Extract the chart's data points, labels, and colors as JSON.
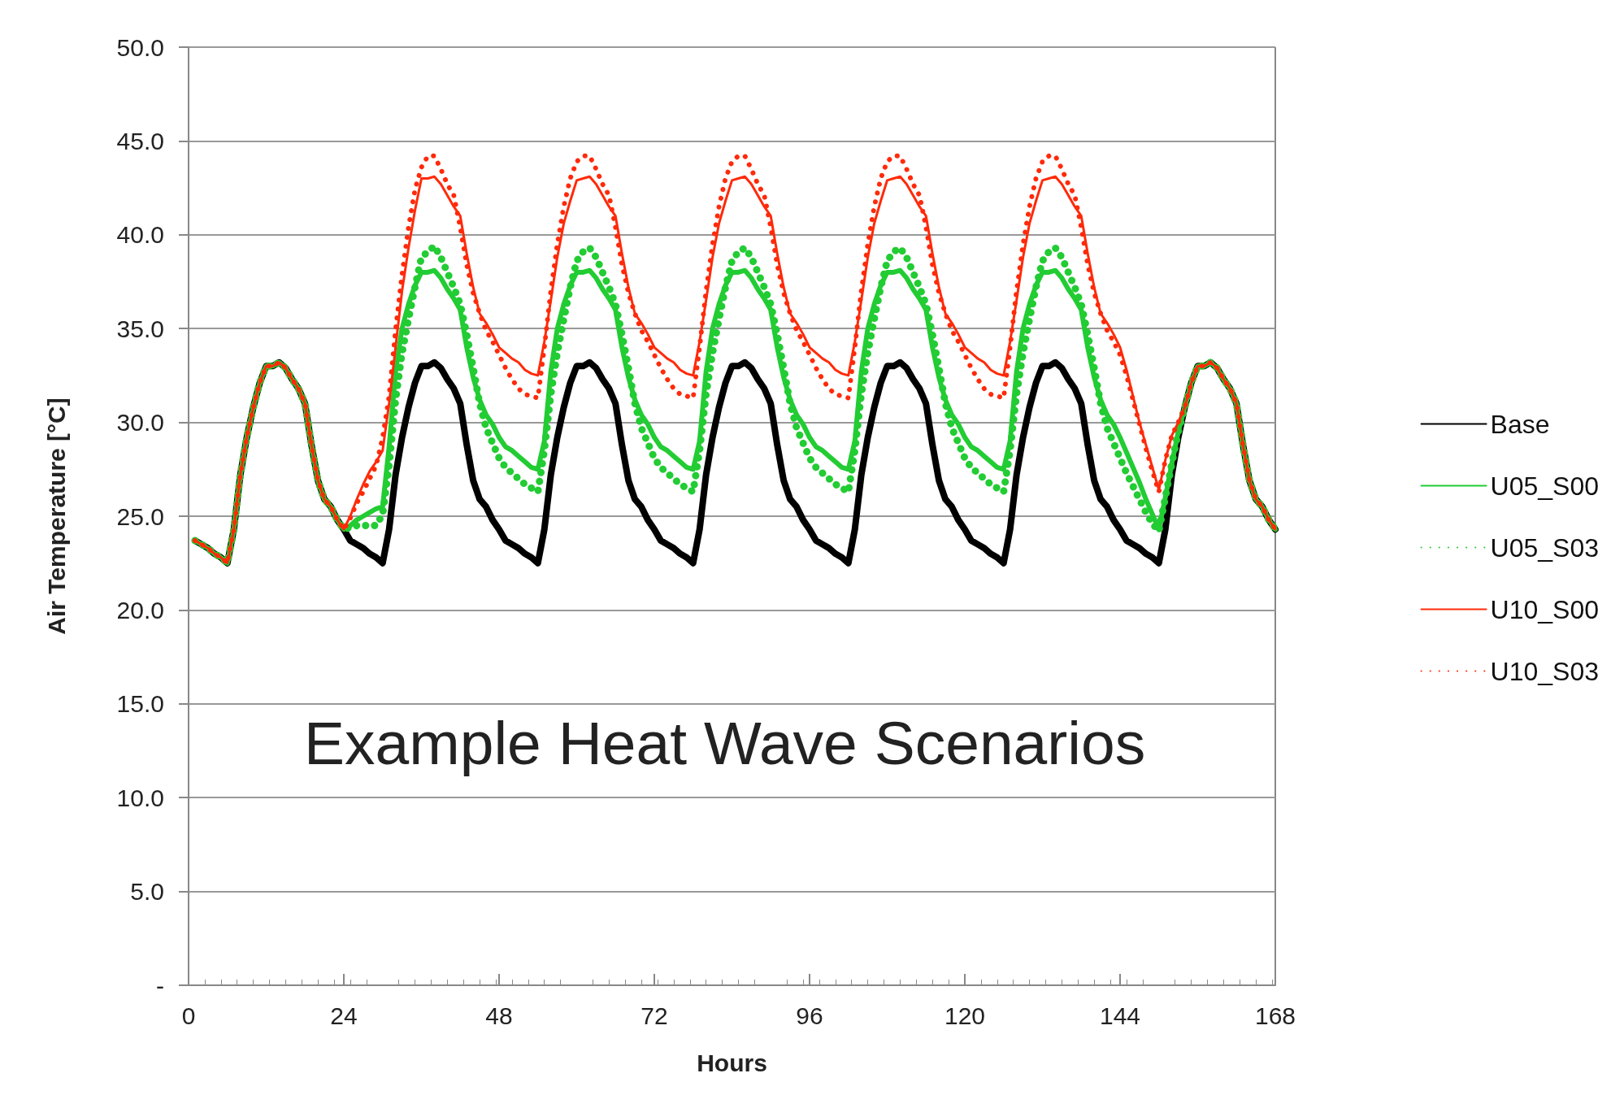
{
  "chart_data": {
    "type": "line",
    "xlabel": "Hours",
    "ylabel": "Air Temperature [°C]",
    "annotations": [
      "Example Heat Wave Scenarios"
    ],
    "x": [
      1,
      2,
      3,
      4,
      5,
      6,
      7,
      8,
      9,
      10,
      11,
      12,
      13,
      14,
      15,
      16,
      17,
      18,
      19,
      20,
      21,
      22,
      23,
      24,
      25,
      26,
      27,
      28,
      29,
      30,
      31,
      32,
      33,
      34,
      35,
      36,
      37,
      38,
      39,
      40,
      41,
      42,
      43,
      44,
      45,
      46,
      47,
      48,
      49,
      50,
      51,
      52,
      53,
      54,
      55,
      56,
      57,
      58,
      59,
      60,
      61,
      62,
      63,
      64,
      65,
      66,
      67,
      68,
      69,
      70,
      71,
      72,
      73,
      74,
      75,
      76,
      77,
      78,
      79,
      80,
      81,
      82,
      83,
      84,
      85,
      86,
      87,
      88,
      89,
      90,
      91,
      92,
      93,
      94,
      95,
      96,
      97,
      98,
      99,
      100,
      101,
      102,
      103,
      104,
      105,
      106,
      107,
      108,
      109,
      110,
      111,
      112,
      113,
      114,
      115,
      116,
      117,
      118,
      119,
      120,
      121,
      122,
      123,
      124,
      125,
      126,
      127,
      128,
      129,
      130,
      131,
      132,
      133,
      134,
      135,
      136,
      137,
      138,
      139,
      140,
      141,
      142,
      143,
      144,
      145,
      146,
      147,
      148,
      149,
      150,
      151,
      152,
      153,
      154,
      155,
      156,
      157,
      158,
      159,
      160,
      161,
      162,
      163,
      164,
      165,
      166,
      167,
      168
    ],
    "series": [
      {
        "name": "Base",
        "color": "#000000",
        "line_style": "solid",
        "values": [
          23.7,
          23.5,
          23.3,
          23.0,
          22.8,
          22.5,
          24.3,
          27.2,
          29.2,
          30.8,
          32.1,
          33.0,
          33.0,
          33.2,
          32.9,
          32.3,
          31.8,
          31.0,
          28.8,
          26.9,
          25.9,
          25.5,
          24.8,
          24.3,
          23.7,
          23.5,
          23.3,
          23.0,
          22.8,
          22.5,
          24.3,
          27.2,
          29.2,
          30.8,
          32.1,
          33.0,
          33.0,
          33.2,
          32.9,
          32.3,
          31.8,
          31.0,
          28.8,
          26.9,
          25.9,
          25.5,
          24.8,
          24.3,
          23.7,
          23.5,
          23.3,
          23.0,
          22.8,
          22.5,
          24.3,
          27.2,
          29.2,
          30.8,
          32.1,
          33.0,
          33.0,
          33.2,
          32.9,
          32.3,
          31.8,
          31.0,
          28.8,
          26.9,
          25.9,
          25.5,
          24.8,
          24.3,
          23.7,
          23.5,
          23.3,
          23.0,
          22.8,
          22.5,
          24.3,
          27.2,
          29.2,
          30.8,
          32.1,
          33.0,
          33.0,
          33.2,
          32.9,
          32.3,
          31.8,
          31.0,
          28.8,
          26.9,
          25.9,
          25.5,
          24.8,
          24.3,
          23.7,
          23.5,
          23.3,
          23.0,
          22.8,
          22.5,
          24.3,
          27.2,
          29.2,
          30.8,
          32.1,
          33.0,
          33.0,
          33.2,
          32.9,
          32.3,
          31.8,
          31.0,
          28.8,
          26.9,
          25.9,
          25.5,
          24.8,
          24.3,
          23.7,
          23.5,
          23.3,
          23.0,
          22.8,
          22.5,
          24.3,
          27.2,
          29.2,
          30.8,
          32.1,
          33.0,
          33.0,
          33.2,
          32.9,
          32.3,
          31.8,
          31.0,
          28.8,
          26.9,
          25.9,
          25.5,
          24.8,
          24.3,
          23.7,
          23.5,
          23.3,
          23.0,
          22.8,
          22.5,
          24.3,
          27.2,
          29.2,
          30.8,
          32.1,
          33.0,
          33.0,
          33.2,
          32.9,
          32.3,
          31.8,
          31.0,
          28.8,
          26.9,
          25.9,
          25.5,
          24.8,
          24.3
        ]
      },
      {
        "name": "U05_S00",
        "color": "#22cc33",
        "line_style": "solid",
        "values": [
          23.7,
          23.5,
          23.3,
          23.0,
          22.8,
          22.5,
          24.3,
          27.2,
          29.2,
          30.8,
          32.1,
          33.0,
          33.0,
          33.2,
          32.9,
          32.3,
          31.8,
          31.0,
          28.8,
          26.9,
          25.9,
          25.5,
          24.8,
          24.3,
          24.5,
          24.8,
          25.0,
          25.2,
          25.4,
          25.5,
          28.7,
          32.7,
          35.0,
          36.3,
          37.3,
          38.0,
          38.0,
          38.1,
          37.7,
          37.1,
          36.6,
          36.0,
          34.0,
          32.4,
          31.2,
          30.4,
          29.9,
          29.2,
          28.7,
          28.5,
          28.2,
          27.9,
          27.6,
          27.5,
          29.0,
          32.7,
          35.0,
          36.3,
          37.3,
          38.0,
          38.0,
          38.1,
          37.7,
          37.1,
          36.6,
          36.0,
          34.0,
          32.4,
          31.2,
          30.4,
          29.9,
          29.2,
          28.7,
          28.5,
          28.2,
          27.9,
          27.6,
          27.5,
          29.0,
          32.7,
          35.0,
          36.3,
          37.3,
          38.0,
          38.0,
          38.1,
          37.7,
          37.1,
          36.6,
          36.0,
          34.0,
          32.4,
          31.2,
          30.4,
          29.9,
          29.2,
          28.7,
          28.5,
          28.2,
          27.9,
          27.6,
          27.5,
          29.0,
          32.7,
          35.0,
          36.3,
          37.3,
          38.0,
          38.0,
          38.1,
          37.7,
          37.1,
          36.6,
          36.0,
          34.0,
          32.4,
          31.2,
          30.4,
          29.9,
          29.2,
          28.7,
          28.5,
          28.2,
          27.9,
          27.6,
          27.5,
          29.0,
          32.7,
          35.0,
          36.3,
          37.3,
          38.0,
          38.0,
          38.1,
          37.7,
          37.1,
          36.6,
          36.0,
          34.0,
          32.4,
          31.2,
          30.4,
          29.9,
          29.2,
          28.4,
          27.6,
          26.8,
          25.9,
          25.1,
          24.3,
          26.0,
          27.8,
          29.5,
          30.8,
          32.1,
          33.0,
          33.0,
          33.2,
          32.9,
          32.3,
          31.8,
          31.0,
          28.8,
          26.9,
          25.9,
          25.5,
          24.8,
          24.3
        ]
      },
      {
        "name": "U05_S03",
        "color": "#22cc33",
        "line_style": "dotted",
        "values": [
          23.7,
          23.5,
          23.3,
          23.0,
          22.8,
          22.5,
          24.3,
          27.2,
          29.2,
          30.8,
          32.1,
          33.0,
          33.0,
          33.2,
          32.9,
          32.3,
          31.8,
          31.0,
          28.8,
          26.9,
          25.9,
          25.5,
          24.8,
          24.3,
          24.4,
          24.5,
          24.5,
          24.5,
          24.5,
          25.1,
          27.7,
          31.2,
          33.7,
          35.5,
          37.2,
          38.8,
          39.1,
          39.4,
          38.8,
          38.0,
          37.2,
          36.3,
          34.7,
          32.9,
          31.0,
          29.7,
          28.9,
          28.1,
          27.6,
          27.3,
          27.0,
          26.7,
          26.5,
          26.3,
          28.5,
          31.5,
          33.7,
          35.5,
          37.2,
          38.6,
          39.1,
          39.3,
          38.8,
          38.0,
          37.2,
          36.3,
          34.7,
          32.9,
          31.0,
          29.7,
          28.9,
          28.1,
          27.6,
          27.3,
          27.0,
          26.7,
          26.5,
          26.3,
          28.5,
          31.5,
          33.7,
          35.5,
          37.2,
          38.6,
          39.1,
          39.3,
          38.8,
          38.0,
          37.2,
          36.3,
          34.7,
          32.9,
          31.0,
          29.7,
          28.9,
          28.1,
          27.6,
          27.3,
          27.0,
          26.7,
          26.5,
          26.3,
          28.5,
          31.5,
          33.7,
          35.5,
          37.2,
          38.6,
          39.1,
          39.3,
          38.8,
          38.0,
          37.2,
          36.3,
          34.7,
          32.9,
          31.0,
          29.7,
          28.9,
          28.1,
          27.6,
          27.3,
          27.0,
          26.7,
          26.5,
          26.3,
          28.5,
          31.5,
          33.7,
          35.5,
          37.2,
          38.6,
          39.1,
          39.3,
          38.8,
          38.0,
          37.2,
          36.3,
          34.7,
          32.9,
          31.0,
          29.7,
          28.9,
          28.1,
          27.3,
          26.6,
          25.9,
          25.2,
          24.6,
          24.2,
          26.0,
          27.8,
          29.5,
          30.8,
          32.1,
          33.0,
          33.0,
          33.2,
          32.9,
          32.3,
          31.8,
          31.0,
          28.8,
          26.9,
          25.9,
          25.5,
          24.8,
          24.3
        ]
      },
      {
        "name": "U10_S00",
        "color": "#ff2a0a",
        "line_style": "solid",
        "values": [
          23.7,
          23.5,
          23.3,
          23.0,
          22.8,
          22.5,
          24.3,
          27.2,
          29.2,
          30.8,
          32.1,
          33.0,
          33.0,
          33.2,
          32.9,
          32.3,
          31.8,
          31.0,
          28.8,
          26.9,
          25.9,
          25.5,
          24.8,
          24.3,
          25.0,
          25.9,
          26.7,
          27.4,
          27.9,
          28.5,
          31.0,
          34.0,
          37.0,
          39.3,
          41.3,
          43.0,
          43.0,
          43.1,
          42.7,
          42.1,
          41.5,
          41.0,
          39.0,
          37.2,
          35.8,
          35.3,
          34.7,
          34.0,
          33.7,
          33.4,
          33.2,
          32.8,
          32.6,
          32.5,
          34.3,
          36.5,
          38.8,
          40.6,
          41.8,
          42.9,
          43.0,
          43.1,
          42.7,
          42.1,
          41.5,
          41.0,
          39.0,
          37.2,
          35.8,
          35.3,
          34.7,
          34.0,
          33.7,
          33.4,
          33.2,
          32.8,
          32.6,
          32.5,
          34.3,
          36.5,
          38.8,
          40.6,
          41.8,
          42.9,
          43.0,
          43.1,
          42.7,
          42.1,
          41.5,
          41.0,
          39.0,
          37.2,
          35.8,
          35.3,
          34.7,
          34.0,
          33.7,
          33.4,
          33.2,
          32.8,
          32.6,
          32.5,
          34.3,
          36.5,
          38.8,
          40.6,
          41.8,
          42.9,
          43.0,
          43.1,
          42.7,
          42.1,
          41.5,
          41.0,
          39.0,
          37.2,
          35.8,
          35.3,
          34.7,
          34.0,
          33.7,
          33.4,
          33.2,
          32.8,
          32.6,
          32.5,
          34.3,
          36.5,
          38.8,
          40.6,
          41.8,
          42.9,
          43.0,
          43.1,
          42.7,
          42.1,
          41.5,
          41.0,
          39.0,
          37.2,
          35.8,
          35.3,
          34.7,
          34.0,
          32.8,
          31.4,
          30.0,
          28.8,
          27.6,
          26.4,
          28.0,
          29.3,
          30.0,
          30.8,
          32.1,
          33.0,
          33.0,
          33.2,
          32.9,
          32.3,
          31.8,
          31.0,
          28.8,
          26.9,
          25.9,
          25.5,
          24.8,
          24.3
        ]
      },
      {
        "name": "U10_S03",
        "color": "#ff2a0a",
        "line_style": "dotted",
        "values": [
          23.7,
          23.5,
          23.3,
          23.0,
          22.8,
          22.5,
          24.3,
          27.2,
          29.2,
          30.8,
          32.1,
          33.0,
          33.0,
          33.2,
          32.9,
          32.3,
          31.8,
          31.0,
          28.8,
          26.9,
          25.9,
          25.5,
          24.8,
          24.3,
          24.9,
          25.7,
          26.3,
          27.0,
          27.7,
          29.2,
          31.4,
          34.9,
          37.9,
          40.4,
          42.4,
          43.6,
          44.2,
          44.2,
          43.5,
          42.7,
          42.1,
          40.4,
          38.4,
          36.9,
          35.8,
          34.9,
          34.3,
          33.6,
          32.9,
          32.3,
          31.8,
          31.5,
          31.4,
          31.3,
          34.0,
          37.0,
          39.5,
          41.5,
          43.0,
          43.9,
          44.2,
          44.2,
          43.5,
          42.7,
          42.1,
          40.4,
          38.4,
          36.9,
          35.8,
          34.9,
          34.3,
          33.6,
          32.9,
          32.3,
          31.8,
          31.5,
          31.4,
          31.3,
          34.0,
          37.0,
          39.5,
          41.5,
          43.0,
          43.9,
          44.2,
          44.2,
          43.5,
          42.7,
          42.1,
          40.4,
          38.4,
          36.9,
          35.8,
          34.9,
          34.3,
          33.6,
          32.9,
          32.3,
          31.8,
          31.5,
          31.4,
          31.3,
          34.0,
          37.0,
          39.5,
          41.5,
          43.0,
          43.9,
          44.2,
          44.2,
          43.5,
          42.7,
          42.1,
          40.4,
          38.4,
          36.9,
          35.8,
          34.9,
          34.3,
          33.6,
          32.9,
          32.3,
          31.8,
          31.5,
          31.4,
          31.3,
          34.0,
          37.0,
          39.5,
          41.5,
          43.0,
          43.9,
          44.2,
          44.2,
          43.5,
          42.7,
          42.1,
          40.4,
          38.4,
          36.9,
          35.8,
          34.9,
          34.3,
          33.6,
          32.5,
          31.2,
          29.9,
          28.6,
          27.4,
          26.3,
          28.0,
          29.3,
          30.0,
          30.8,
          32.1,
          33.0,
          33.0,
          33.2,
          32.9,
          32.3,
          31.8,
          31.0,
          28.8,
          26.9,
          25.9,
          25.5,
          24.8,
          24.3
        ]
      }
    ],
    "xlim": [
      0,
      168
    ],
    "xticks": [
      0,
      24,
      48,
      72,
      96,
      120,
      144,
      168
    ],
    "ylim": [
      0,
      50
    ],
    "yticks": [
      {
        "value": 0,
        "label": "-"
      },
      {
        "value": 5,
        "label": "5.0"
      },
      {
        "value": 10,
        "label": "10.0"
      },
      {
        "value": 15,
        "label": "15.0"
      },
      {
        "value": 20,
        "label": "20.0"
      },
      {
        "value": 25,
        "label": "25.0"
      },
      {
        "value": 30,
        "label": "30.0"
      },
      {
        "value": 35,
        "label": "35.0"
      },
      {
        "value": 40,
        "label": "40.0"
      },
      {
        "value": 45,
        "label": "45.0"
      },
      {
        "value": 50,
        "label": "50.0"
      }
    ],
    "grid": "y",
    "legend": "right",
    "marker": "none"
  }
}
